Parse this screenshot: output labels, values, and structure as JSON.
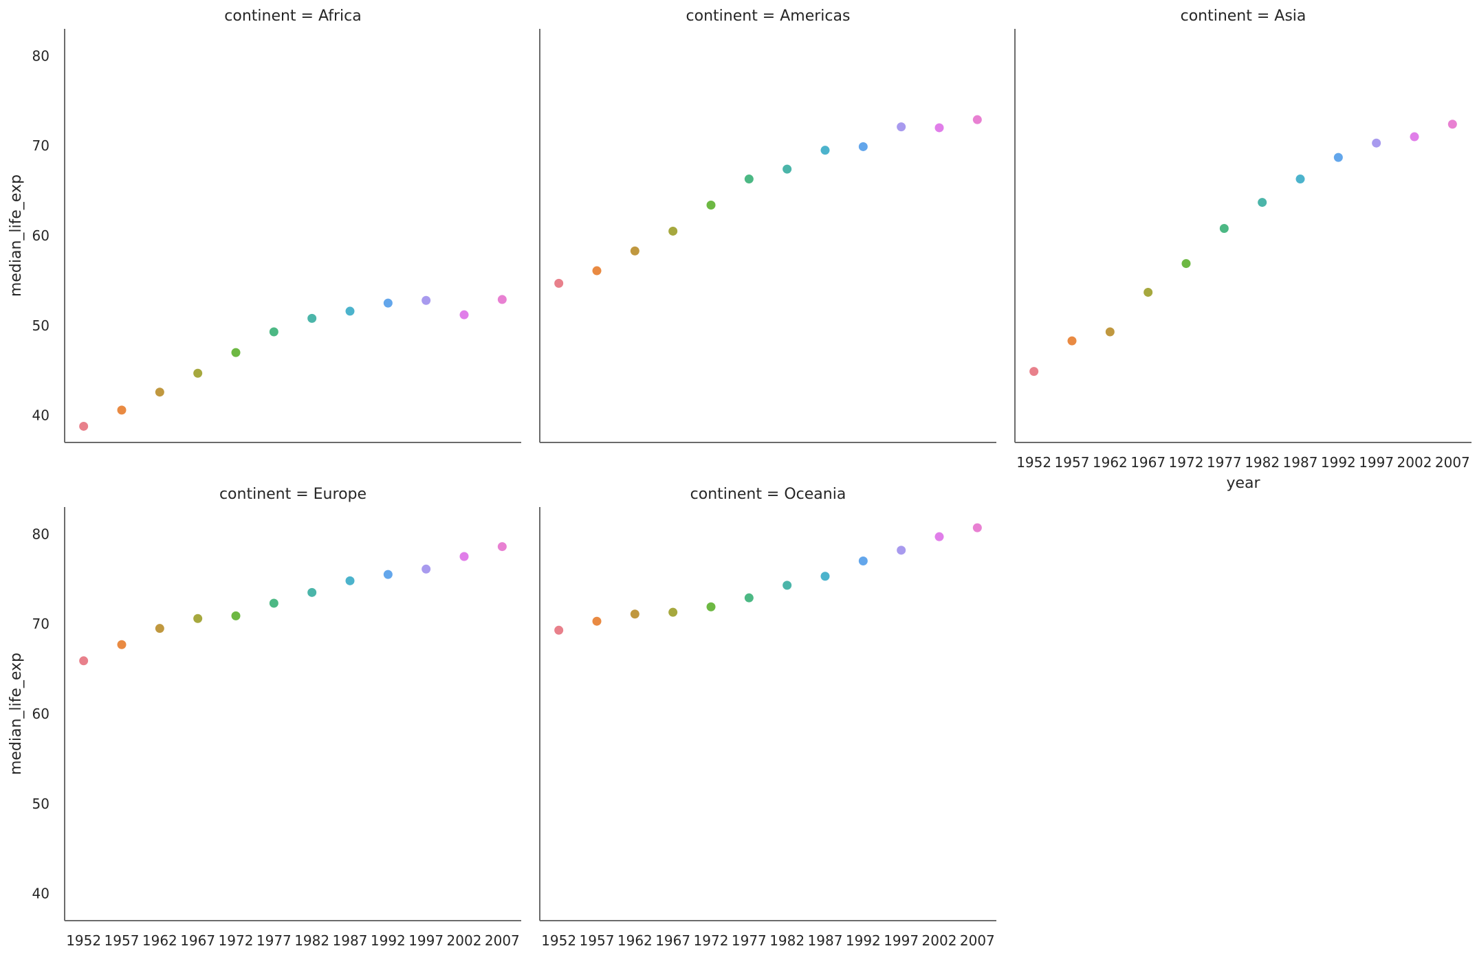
{
  "chart_data": {
    "type": "scatter",
    "layout": "facet-grid",
    "x": [
      "1952",
      "1957",
      "1962",
      "1967",
      "1972",
      "1977",
      "1982",
      "1987",
      "1992",
      "1997",
      "2002",
      "2007"
    ],
    "xlabel": "year",
    "ylabel": "median_life_exp",
    "ylim": [
      37,
      83
    ],
    "yticks": [
      40,
      50,
      60,
      70,
      80
    ],
    "grid": false,
    "point_colors": [
      "#e8808b",
      "#e98a42",
      "#c0983f",
      "#a6a83e",
      "#6db843",
      "#4cb884",
      "#4bb5a9",
      "#4cb3cc",
      "#63a6eb",
      "#a89aee",
      "#e07ee9",
      "#e880d2"
    ],
    "facets": [
      {
        "title": "continent = Africa",
        "values": [
          38.8,
          40.6,
          42.6,
          44.7,
          47.0,
          49.3,
          50.8,
          51.6,
          52.5,
          52.8,
          51.2,
          52.9
        ]
      },
      {
        "title": "continent = Americas",
        "values": [
          54.7,
          56.1,
          58.3,
          60.5,
          63.4,
          66.3,
          67.4,
          69.5,
          69.9,
          72.1,
          72.0,
          72.9
        ]
      },
      {
        "title": "continent = Asia",
        "values": [
          44.9,
          48.3,
          49.3,
          53.7,
          56.9,
          60.8,
          63.7,
          66.3,
          68.7,
          70.3,
          71.0,
          72.4
        ]
      },
      {
        "title": "continent = Europe",
        "values": [
          65.9,
          67.7,
          69.5,
          70.6,
          70.9,
          72.3,
          73.5,
          74.8,
          75.5,
          76.1,
          77.5,
          78.6
        ]
      },
      {
        "title": "continent = Oceania",
        "values": [
          69.3,
          70.3,
          71.1,
          71.3,
          71.9,
          72.9,
          74.3,
          75.3,
          77.0,
          78.2,
          79.7,
          80.7
        ]
      }
    ]
  }
}
